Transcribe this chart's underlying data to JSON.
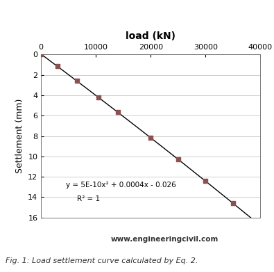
{
  "title": "load (kN)",
  "ylabel": "Settlement (mm)",
  "xlim": [
    0,
    40000
  ],
  "ylim": [
    0,
    16
  ],
  "xticks": [
    0,
    10000,
    20000,
    30000,
    40000
  ],
  "yticks": [
    0,
    2,
    4,
    6,
    8,
    10,
    12,
    14,
    16
  ],
  "data_x": [
    0,
    3000,
    6500,
    10500,
    14000,
    20000,
    25000,
    30000,
    35000
  ],
  "line_color": "#000000",
  "marker_color": "#8B5050",
  "equation_text": "y = 5E-10x² + 0.0004x - 0.026",
  "r2_text": "R² = 1",
  "equation_x": 4500,
  "equation_y": 12.5,
  "watermark": "www.engineeringcivil.com",
  "caption": "Fig. 1: Load settlement curve calculated by Eq. 2.",
  "bg_color": "#ffffff",
  "plot_bg_color": "#ffffff",
  "grid_color": "#bbbbbb",
  "coeff_a": 5e-10,
  "coeff_b": 0.0004,
  "coeff_c": -0.026,
  "line_width": 1.0
}
